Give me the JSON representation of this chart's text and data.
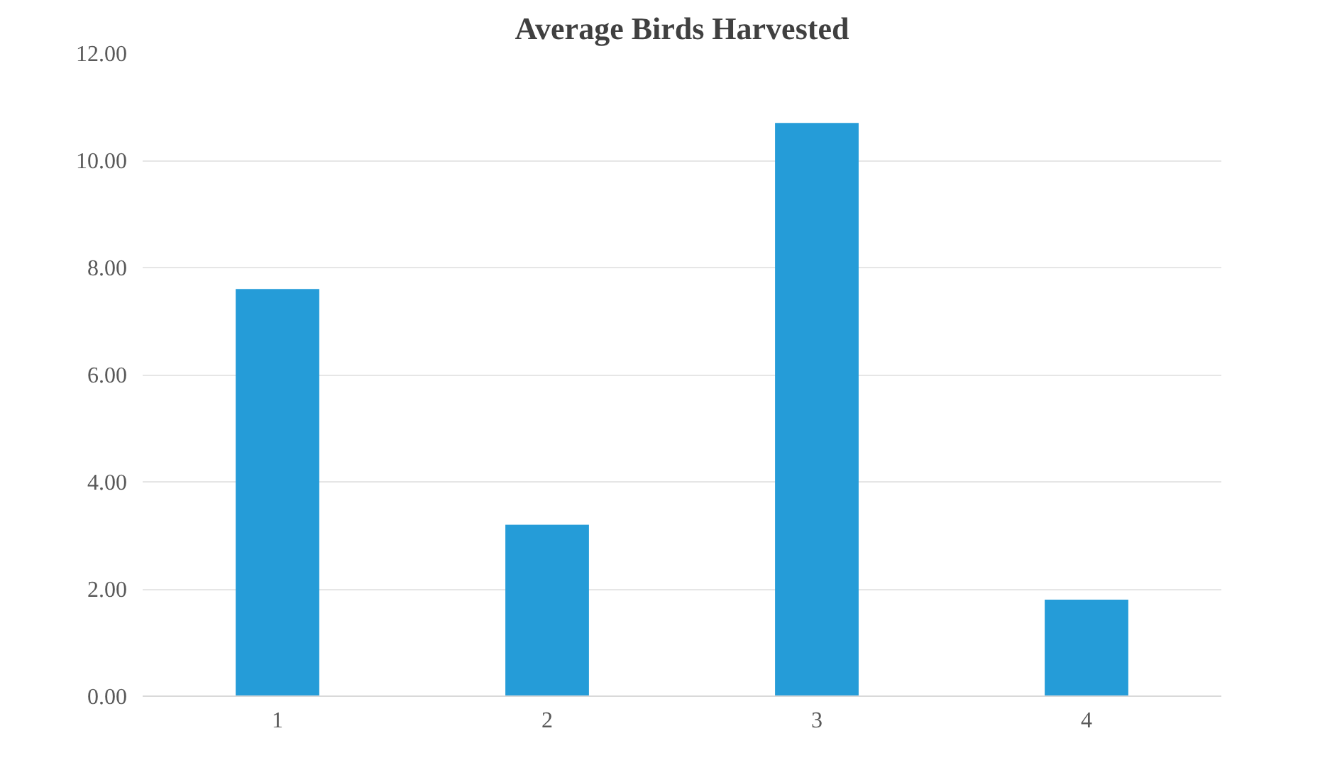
{
  "chart_data": {
    "type": "bar",
    "title": "Average Birds Harvested",
    "categories": [
      "1",
      "2",
      "3",
      "4"
    ],
    "values": [
      7.6,
      3.2,
      10.7,
      1.8
    ],
    "color": "#259cd8",
    "ylim": [
      0,
      12
    ],
    "yticks": [
      {
        "value": 0,
        "label": "0.00"
      },
      {
        "value": 2,
        "label": "2.00"
      },
      {
        "value": 4,
        "label": "4.00"
      },
      {
        "value": 6,
        "label": "6.00"
      },
      {
        "value": 8,
        "label": "8.00"
      },
      {
        "value": 10,
        "label": "10.00"
      },
      {
        "value": 12,
        "label": "12.00"
      }
    ],
    "grid": "y"
  }
}
